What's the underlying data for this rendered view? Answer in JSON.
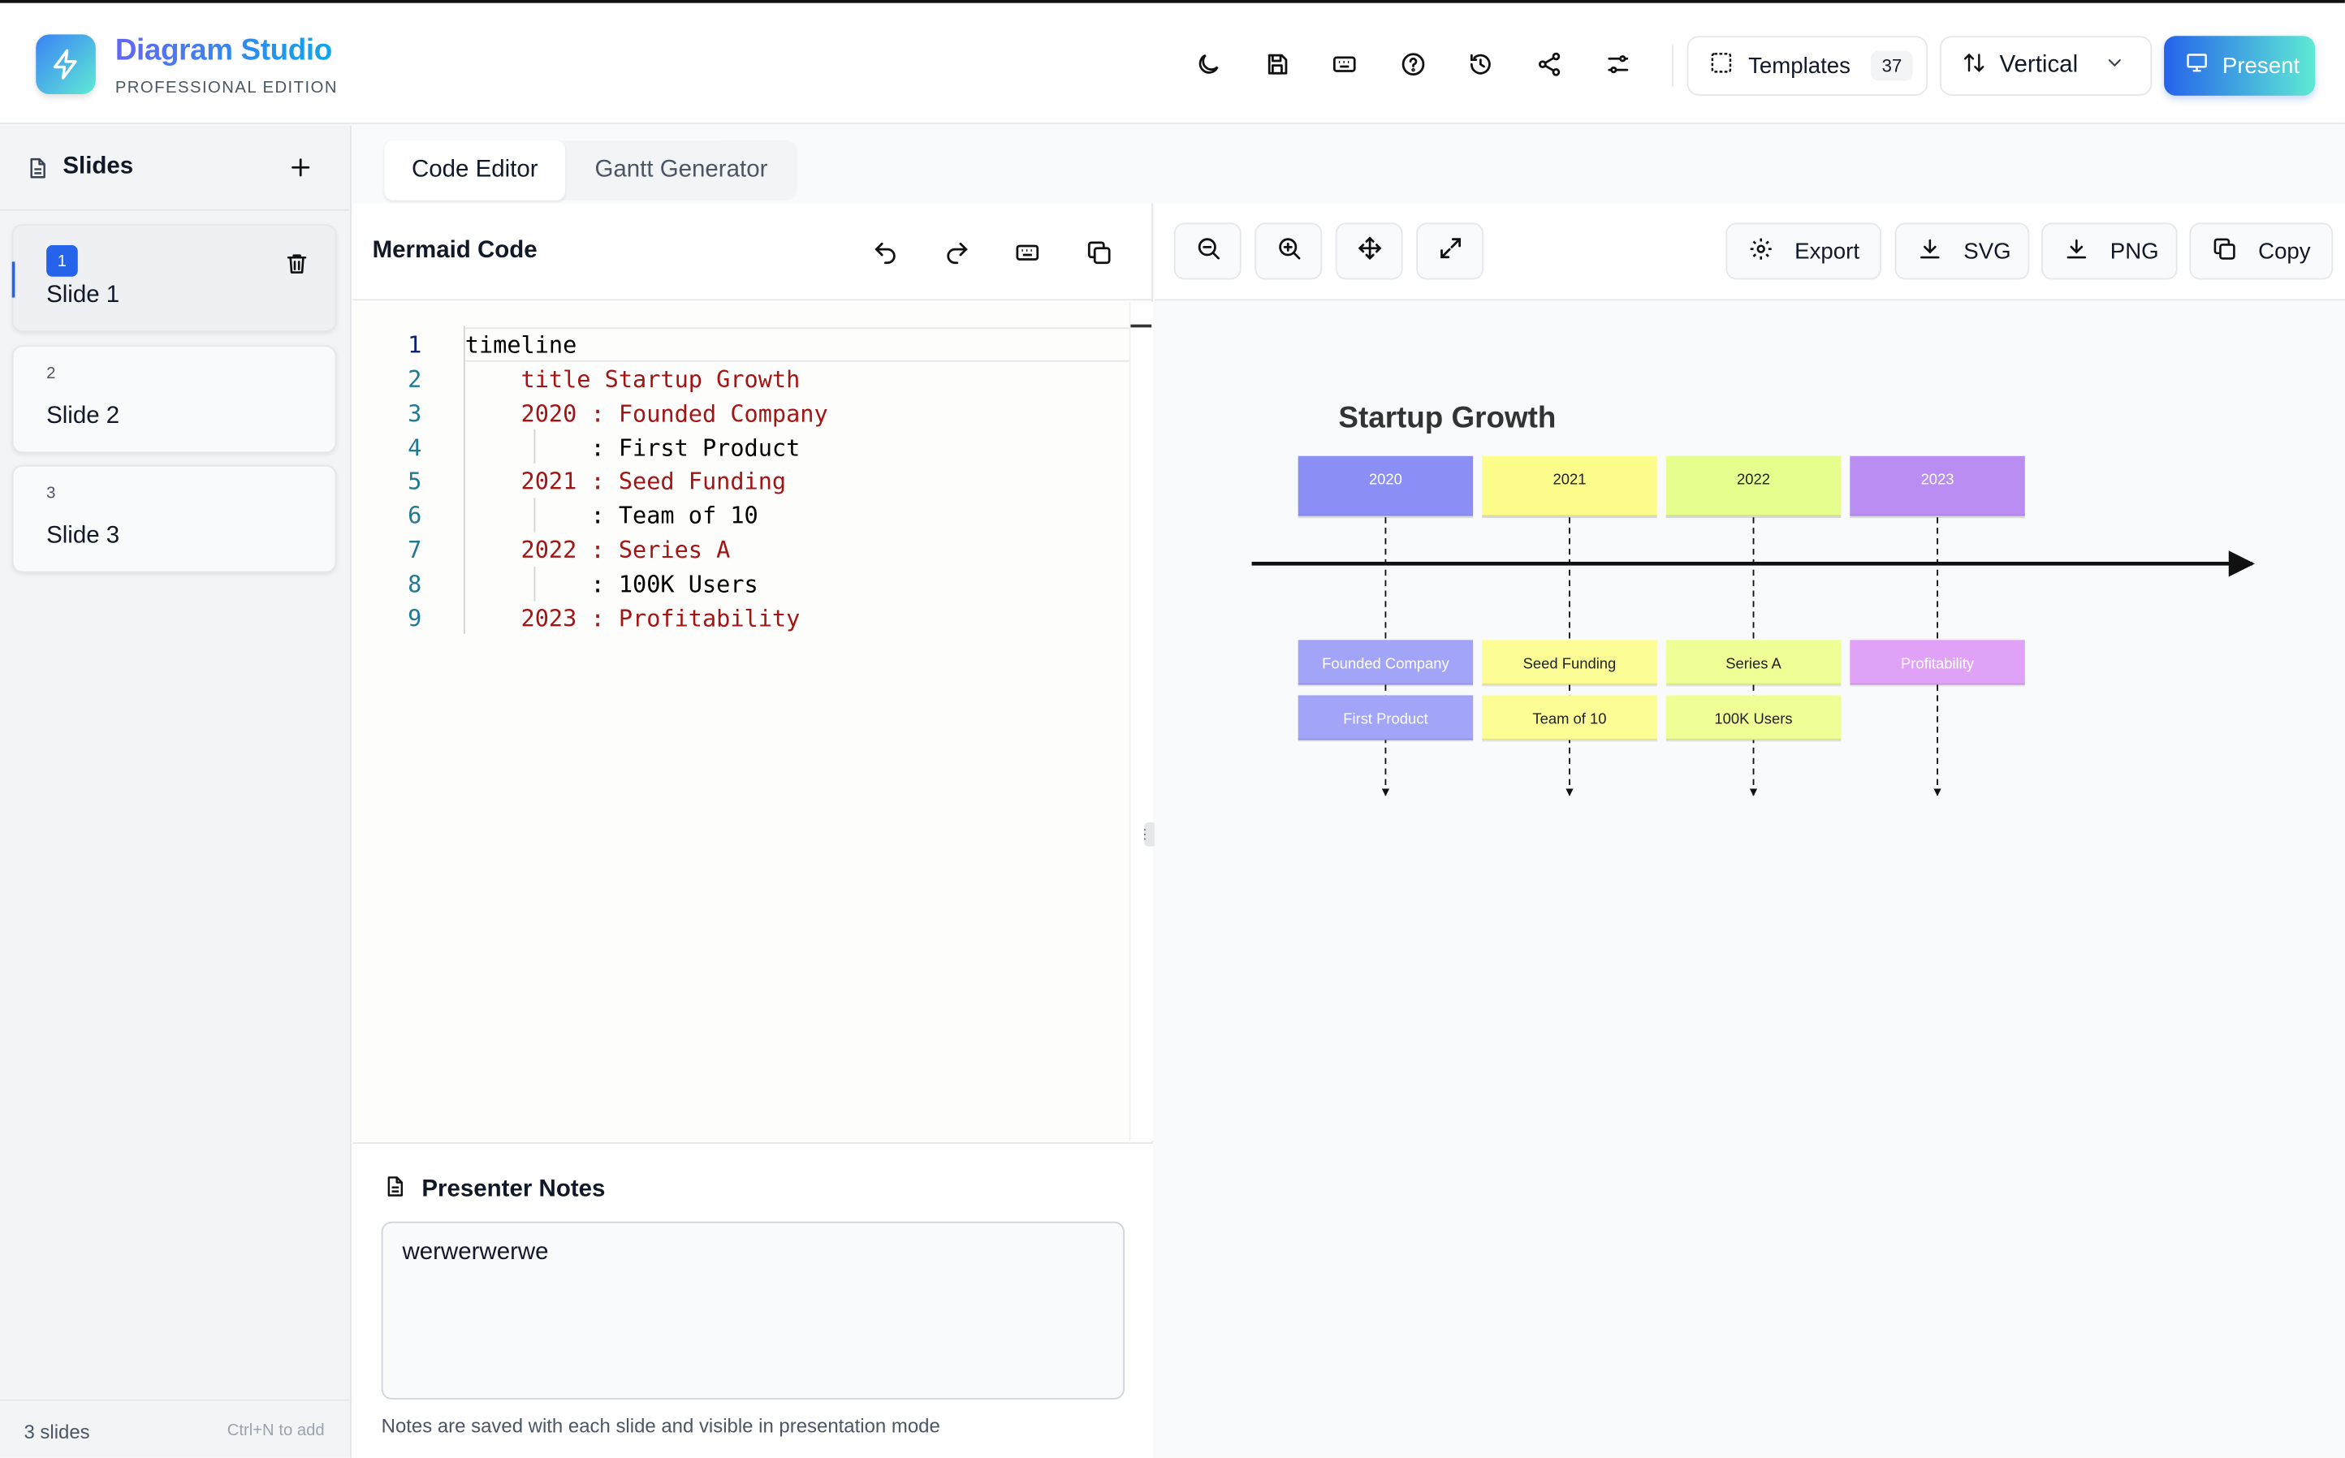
{
  "app": {
    "title": "Diagram Studio",
    "edition": "PROFESSIONAL EDITION",
    "accent": "#2563eb"
  },
  "toolbar": {
    "icons": [
      "moon-icon",
      "save-icon",
      "keyboard-icon",
      "help-icon",
      "history-icon",
      "share-icon",
      "settings-sliders-icon"
    ],
    "templates_label": "Templates",
    "templates_count": "37",
    "orientation_label": "Vertical",
    "present_label": "Present"
  },
  "sidebar": {
    "title": "Slides",
    "slides": [
      {
        "number": "1",
        "name": "Slide 1",
        "active": true
      },
      {
        "number": "2",
        "name": "Slide 2",
        "active": false
      },
      {
        "number": "3",
        "name": "Slide 3",
        "active": false
      }
    ],
    "footer_count": "3 slides",
    "footer_hint": "Ctrl+N to add"
  },
  "tabs": [
    {
      "label": "Code Editor",
      "active": true
    },
    {
      "label": "Gantt Generator",
      "active": false
    }
  ],
  "editor": {
    "title": "Mermaid Code",
    "lines": [
      "timeline",
      "    title Startup Growth",
      "    2020 : Founded Company",
      "         : First Product",
      "    2021 : Seed Funding",
      "         : Team of 10",
      "    2022 : Series A",
      "         : 100K Users",
      "    2023 : Profitability"
    ],
    "line_numbers": [
      "1",
      "2",
      "3",
      "4",
      "5",
      "6",
      "7",
      "8",
      "9"
    ]
  },
  "notes": {
    "title": "Presenter Notes",
    "value": "werwerwerwe",
    "hint": "Notes are saved with each slide and visible in presentation mode"
  },
  "preview": {
    "buttons": {
      "export": "Export",
      "svg": "SVG",
      "png": "PNG",
      "copy": "Copy"
    }
  },
  "diagram": {
    "title": "Startup Growth",
    "periods": [
      {
        "year": "2020",
        "color": "#8b8ff5",
        "event_color": "#a1a4f7",
        "events": [
          "Founded Company",
          "First Product"
        ]
      },
      {
        "year": "2021",
        "color": "#fdfd8c",
        "event_color": "#fdfd96",
        "events": [
          "Seed Funding",
          "Team of 10"
        ]
      },
      {
        "year": "2022",
        "color": "#e5fe8e",
        "event_color": "#efff96",
        "events": [
          "Series A",
          "100K Users"
        ]
      },
      {
        "year": "2023",
        "color": "#b98df1",
        "event_color": "#e0a2f7",
        "events": [
          "Profitability"
        ]
      }
    ]
  }
}
